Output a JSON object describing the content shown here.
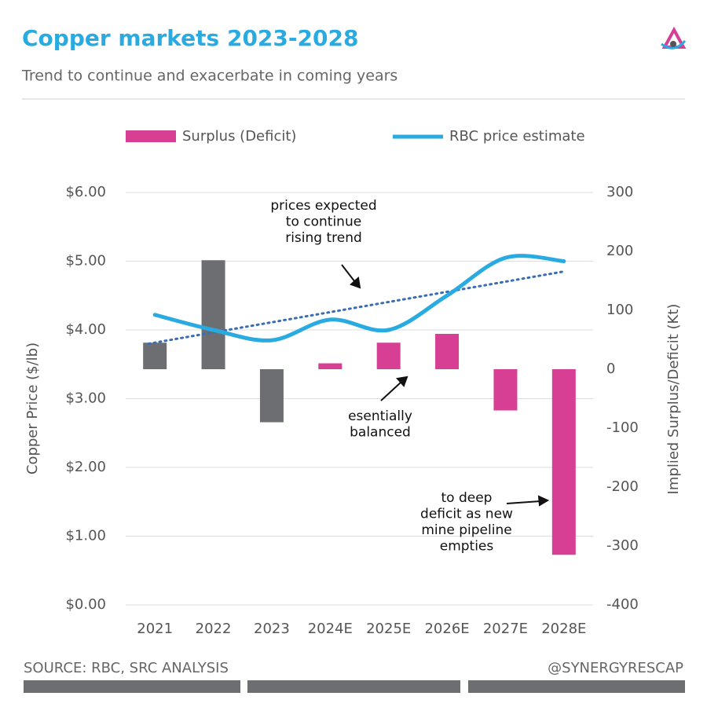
{
  "chart_data": {
    "type": "bar_line",
    "title": "Copper markets 2023-2028",
    "subtitle": "Trend to continue and exacerbate in coming years",
    "categories": [
      "2021",
      "2022",
      "2023",
      "2024E",
      "2025E",
      "2026E",
      "2027E",
      "2028E"
    ],
    "series": [
      {
        "name": "Surplus (Deficit)",
        "color": "#d63f94",
        "history_color": "#6d6e71",
        "history_count": 3,
        "axis": "y2",
        "kind": "bar",
        "values": [
          45,
          185,
          -90,
          10,
          45,
          60,
          -70,
          -315
        ]
      },
      {
        "name": "RBC price estimate",
        "color": "#29abe2",
        "axis": "y",
        "kind": "line",
        "values": [
          4.22,
          4.0,
          3.85,
          4.15,
          4.0,
          4.5,
          5.05,
          5.0
        ]
      }
    ],
    "trend": {
      "color": "#3b6db3",
      "values": [
        3.8,
        4.85
      ]
    },
    "ylim": [
      0,
      6
    ],
    "yticks": [
      {
        "value": 0,
        "label": "$0.00"
      },
      {
        "value": 1,
        "label": "$1.00"
      },
      {
        "value": 2,
        "label": "$2.00"
      },
      {
        "value": 3,
        "label": "$3.00"
      },
      {
        "value": 4,
        "label": "$4.00"
      },
      {
        "value": 5,
        "label": "$5.00"
      },
      {
        "value": 6,
        "label": "$6.00"
      }
    ],
    "y2lim": [
      -400,
      300
    ],
    "y2ticks": [
      -400,
      -300,
      -200,
      -100,
      0,
      100,
      200,
      300
    ],
    "ylabel": "Copper Price ($/lb)",
    "y2label": "Implied Surplus/Deficit (Kt)",
    "grid": true,
    "annotations": [
      {
        "lines": [
          "prices expected",
          "to continue",
          "rising trend"
        ]
      },
      {
        "lines": [
          "esentially",
          "balanced"
        ]
      },
      {
        "lines": [
          "to deep",
          "deficit as new",
          "mine pipeline",
          "empties"
        ]
      }
    ],
    "source": "SOURCE: RBC, SRC ANALYSIS",
    "handle": "@SYNERGYRESCAP"
  }
}
